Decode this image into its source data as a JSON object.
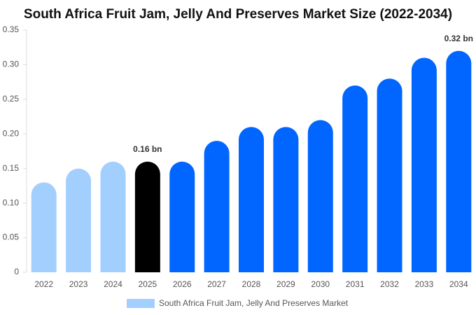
{
  "chart_data": {
    "type": "bar",
    "title": "South Africa Fruit Jam, Jelly And Preserves Market Size (2022-2034)",
    "categories": [
      "2022",
      "2023",
      "2024",
      "2025",
      "2026",
      "2027",
      "2028",
      "2029",
      "2030",
      "2031",
      "2032",
      "2033",
      "2034"
    ],
    "series": [
      {
        "name": "South Africa Fruit Jam, Jelly And Preserves Market",
        "color": "#a3cfff",
        "colors": [
          "#a3cfff",
          "#a3cfff",
          "#a3cfff",
          "#000000",
          "#0066ff",
          "#0066ff",
          "#0066ff",
          "#0066ff",
          "#0066ff",
          "#0066ff",
          "#0066ff",
          "#0066ff",
          "#0066ff"
        ],
        "values": [
          0.13,
          0.15,
          0.16,
          0.16,
          0.16,
          0.19,
          0.21,
          0.21,
          0.22,
          0.27,
          0.28,
          0.31,
          0.32
        ],
        "value_labels": [
          null,
          null,
          null,
          "0.16 bn",
          null,
          null,
          null,
          null,
          null,
          null,
          null,
          null,
          "0.32 bn"
        ]
      }
    ],
    "ylim": [
      0,
      0.35
    ],
    "yticks": [
      0,
      0.05,
      {
        "value": 0.1,
        "label": "0.10"
      },
      0.15,
      {
        "value": 0.2,
        "label": "0.20"
      },
      0.25,
      {
        "value": 0.3,
        "label": "0.30"
      },
      0.35
    ],
    "grid": false
  }
}
